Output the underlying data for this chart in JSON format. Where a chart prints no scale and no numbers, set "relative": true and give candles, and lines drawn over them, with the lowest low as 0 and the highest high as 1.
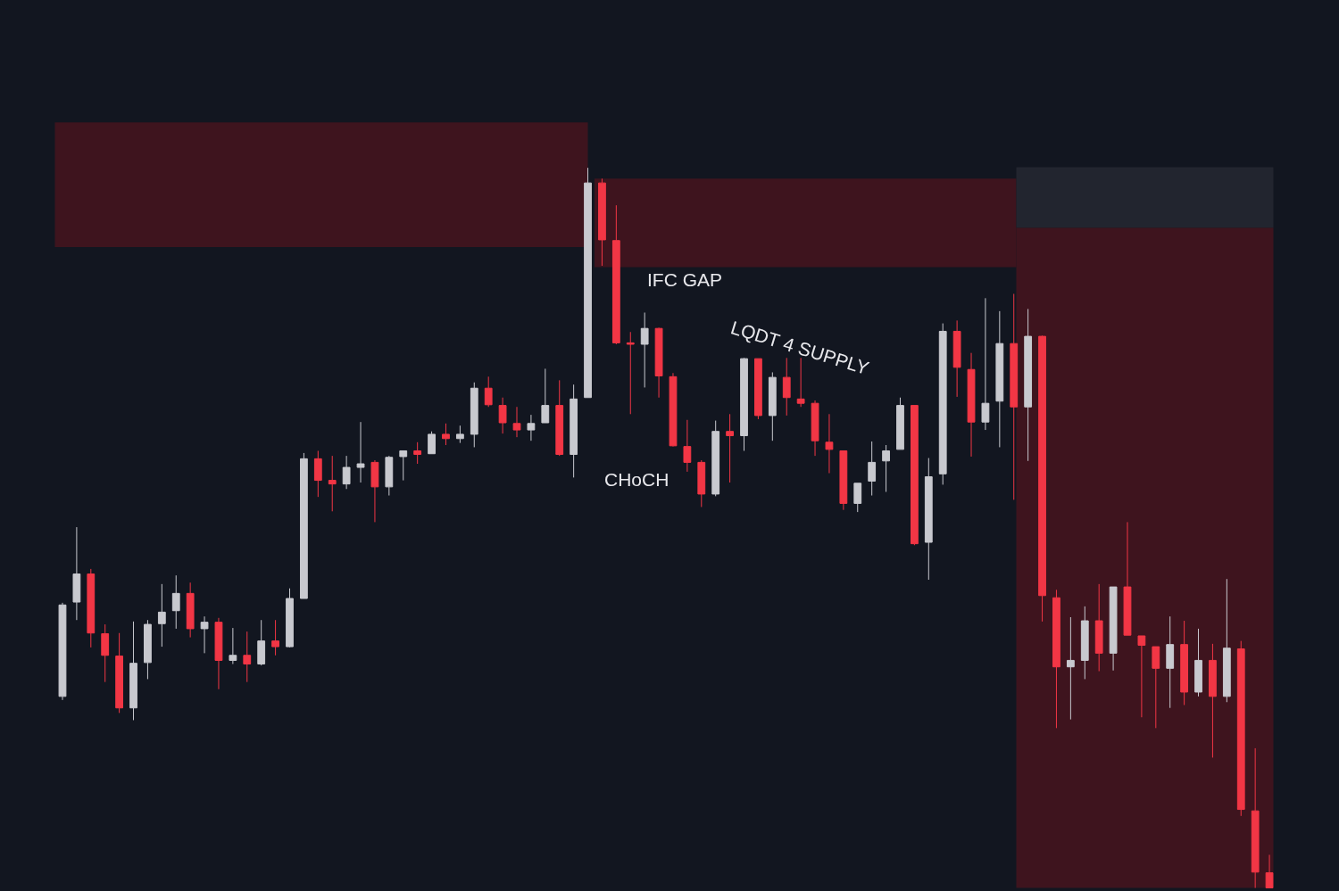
{
  "chart_data": {
    "type": "candlestick",
    "relative": true,
    "categories": [
      null,
      null,
      null,
      null,
      null,
      null,
      null,
      null,
      null,
      null,
      null,
      null,
      null,
      null,
      null,
      null,
      null,
      null,
      null,
      null,
      null,
      null,
      null,
      null,
      null,
      null,
      null,
      null,
      null,
      null,
      null,
      null,
      null,
      null,
      null,
      null,
      null,
      null,
      null,
      null,
      null,
      null,
      null,
      null,
      null,
      null,
      null,
      null,
      null,
      null,
      null,
      null,
      null,
      null,
      null,
      null,
      null,
      null,
      null,
      null,
      null,
      null,
      null,
      null,
      null,
      null,
      null,
      null,
      null,
      null,
      null,
      null,
      null,
      null,
      null,
      null,
      null,
      null,
      null,
      null,
      null,
      null,
      null,
      null,
      null,
      null
    ],
    "ohlc": [
      [
        0.266,
        0.396,
        0.261,
        0.393
      ],
      [
        0.397,
        0.501,
        0.372,
        0.436
      ],
      [
        0.436,
        0.443,
        0.334,
        0.354
      ],
      [
        0.353,
        0.366,
        0.286,
        0.323
      ],
      [
        0.322,
        0.354,
        0.243,
        0.25
      ],
      [
        0.25,
        0.37,
        0.233,
        0.312
      ],
      [
        0.313,
        0.372,
        0.29,
        0.366
      ],
      [
        0.367,
        0.422,
        0.335,
        0.383
      ],
      [
        0.385,
        0.434,
        0.36,
        0.409
      ],
      [
        0.409,
        0.424,
        0.348,
        0.36
      ],
      [
        0.36,
        0.377,
        0.326,
        0.369
      ],
      [
        0.369,
        0.375,
        0.276,
        0.316
      ],
      [
        0.316,
        0.361,
        0.311,
        0.323
      ],
      [
        0.323,
        0.356,
        0.286,
        0.311
      ],
      [
        0.311,
        0.372,
        0.309,
        0.343
      ],
      [
        0.343,
        0.372,
        0.323,
        0.335
      ],
      [
        0.335,
        0.416,
        0.334,
        0.402
      ],
      [
        0.402,
        0.604,
        0.402,
        0.596
      ],
      [
        0.596,
        0.607,
        0.543,
        0.566
      ],
      [
        0.566,
        0.6,
        0.523,
        0.561
      ],
      [
        0.561,
        0.6,
        0.554,
        0.584
      ],
      [
        0.584,
        0.647,
        0.563,
        0.589
      ],
      [
        0.591,
        0.594,
        0.508,
        0.557
      ],
      [
        0.557,
        0.6,
        0.545,
        0.598
      ],
      [
        0.599,
        0.607,
        0.566,
        0.607
      ],
      [
        0.607,
        0.619,
        0.589,
        0.602
      ],
      [
        0.603,
        0.634,
        0.603,
        0.63
      ],
      [
        0.63,
        0.645,
        0.615,
        0.624
      ],
      [
        0.624,
        0.642,
        0.618,
        0.63
      ],
      [
        0.63,
        0.702,
        0.612,
        0.694
      ],
      [
        0.694,
        0.71,
        0.668,
        0.671
      ],
      [
        0.67,
        0.681,
        0.631,
        0.646
      ],
      [
        0.645,
        0.668,
        0.626,
        0.636
      ],
      [
        0.636,
        0.657,
        0.621,
        0.645
      ],
      [
        0.646,
        0.721,
        0.646,
        0.67
      ],
      [
        0.67,
        0.705,
        0.6,
        0.602
      ],
      [
        0.602,
        0.699,
        0.57,
        0.679
      ],
      [
        0.681,
        1.0,
        0.681,
        0.979
      ],
      [
        0.979,
        0.985,
        0.864,
        0.9
      ],
      [
        0.899,
        0.948,
        0.755,
        0.757
      ],
      [
        0.757,
        0.772,
        0.658,
        0.755
      ],
      [
        0.755,
        0.799,
        0.695,
        0.777
      ],
      [
        0.777,
        0.778,
        0.681,
        0.711
      ],
      [
        0.71,
        0.715,
        0.613,
        0.614
      ],
      [
        0.613,
        0.65,
        0.578,
        0.591
      ],
      [
        0.591,
        0.594,
        0.529,
        0.547
      ],
      [
        0.547,
        0.649,
        0.544,
        0.634
      ],
      [
        0.634,
        0.658,
        0.563,
        0.628
      ],
      [
        0.628,
        0.736,
        0.607,
        0.735
      ],
      [
        0.735,
        0.735,
        0.651,
        0.656
      ],
      [
        0.656,
        0.716,
        0.621,
        0.709
      ],
      [
        0.709,
        0.736,
        0.656,
        0.681
      ],
      [
        0.679,
        0.736,
        0.668,
        0.673
      ],
      [
        0.673,
        0.677,
        0.6,
        0.621
      ],
      [
        0.619,
        0.658,
        0.576,
        0.609
      ],
      [
        0.607,
        0.607,
        0.525,
        0.534
      ],
      [
        0.534,
        0.562,
        0.522,
        0.562
      ],
      [
        0.565,
        0.62,
        0.545,
        0.591
      ],
      [
        0.593,
        0.615,
        0.55,
        0.607
      ],
      [
        0.609,
        0.681,
        0.609,
        0.67
      ],
      [
        0.67,
        0.67,
        0.476,
        0.478
      ],
      [
        0.48,
        0.597,
        0.428,
        0.571
      ],
      [
        0.575,
        0.784,
        0.56,
        0.773
      ],
      [
        0.773,
        0.788,
        0.682,
        0.723
      ],
      [
        0.72,
        0.743,
        0.599,
        0.647
      ],
      [
        0.647,
        0.819,
        0.636,
        0.673
      ],
      [
        0.676,
        0.801,
        0.612,
        0.756
      ],
      [
        0.756,
        0.825,
        0.539,
        0.668
      ],
      [
        0.668,
        0.804,
        0.593,
        0.766
      ],
      [
        0.766,
        0.767,
        0.37,
        0.406
      ],
      [
        0.403,
        0.414,
        0.222,
        0.307
      ],
      [
        0.307,
        0.376,
        0.234,
        0.316
      ],
      [
        0.316,
        0.391,
        0.29,
        0.371
      ],
      [
        0.371,
        0.422,
        0.301,
        0.326
      ],
      [
        0.326,
        0.418,
        0.302,
        0.418
      ],
      [
        0.418,
        0.508,
        0.351,
        0.351
      ],
      [
        0.35,
        0.35,
        0.237,
        0.337
      ],
      [
        0.335,
        0.335,
        0.222,
        0.305
      ],
      [
        0.305,
        0.377,
        0.25,
        0.338
      ],
      [
        0.338,
        0.371,
        0.254,
        0.272
      ],
      [
        0.272,
        0.36,
        0.266,
        0.316
      ],
      [
        0.316,
        0.339,
        0.181,
        0.266
      ],
      [
        0.266,
        0.429,
        0.258,
        0.333
      ],
      [
        0.332,
        0.343,
        0.1,
        0.109
      ],
      [
        0.107,
        0.194,
        0.0,
        0.022
      ],
      [
        0.021,
        0.046,
        0.0,
        0.0
      ]
    ],
    "colors": [
      "#c8c9cf",
      "#c8c9cf",
      "#f23645",
      "#f23645",
      "#f23645",
      "#c8c9cf",
      "#c8c9cf",
      "#c8c9cf",
      "#c8c9cf",
      "#f23645",
      "#c8c9cf",
      "#f23645",
      "#c8c9cf",
      "#f23645",
      "#c8c9cf",
      "#f23645",
      "#c8c9cf",
      "#c8c9cf",
      "#f23645",
      "#f23645",
      "#c8c9cf",
      "#c8c9cf",
      "#f23645",
      "#c8c9cf",
      "#c8c9cf",
      "#f23645",
      "#c8c9cf",
      "#f23645",
      "#c8c9cf",
      "#c8c9cf",
      "#f23645",
      "#f23645",
      "#f23645",
      "#c8c9cf",
      "#c8c9cf",
      "#f23645",
      "#c8c9cf",
      "#c8c9cf",
      "#f23645",
      "#f23645",
      "#f23645",
      "#c8c9cf",
      "#f23645",
      "#f23645",
      "#f23645",
      "#f23645",
      "#c8c9cf",
      "#f23645",
      "#c8c9cf",
      "#f23645",
      "#c8c9cf",
      "#f23645",
      "#f23645",
      "#f23645",
      "#f23645",
      "#f23645",
      "#c8c9cf",
      "#c8c9cf",
      "#c8c9cf",
      "#c8c9cf",
      "#f23645",
      "#c8c9cf",
      "#c8c9cf",
      "#f23645",
      "#f23645",
      "#c8c9cf",
      "#c8c9cf",
      "#f23645",
      "#c8c9cf",
      "#f23645",
      "#f23645",
      "#c8c9cf",
      "#c8c9cf",
      "#f23645",
      "#c8c9cf",
      "#f23645",
      "#f23645",
      "#f23645",
      "#c8c9cf",
      "#f23645",
      "#c8c9cf",
      "#f23645",
      "#c8c9cf",
      "#f23645",
      "#f23645",
      "#f23645"
    ],
    "bands": [
      {
        "axis": "y",
        "from": 0.89,
        "to": 1.063,
        "color": "#3e141e"
      },
      {
        "axis": "y",
        "from": 0.862,
        "to": 0.985,
        "color": "#3e141e"
      },
      {
        "axis": "y",
        "from": 0.0,
        "to": 0.917,
        "color": "#3e141e"
      },
      {
        "axis": "y",
        "from": 0.917,
        "to": 1.001,
        "color": "#22252f"
      }
    ],
    "annotations": [
      "IFC GAP",
      "LQDT 4 SUPPLY",
      "CHoCH"
    ]
  }
}
